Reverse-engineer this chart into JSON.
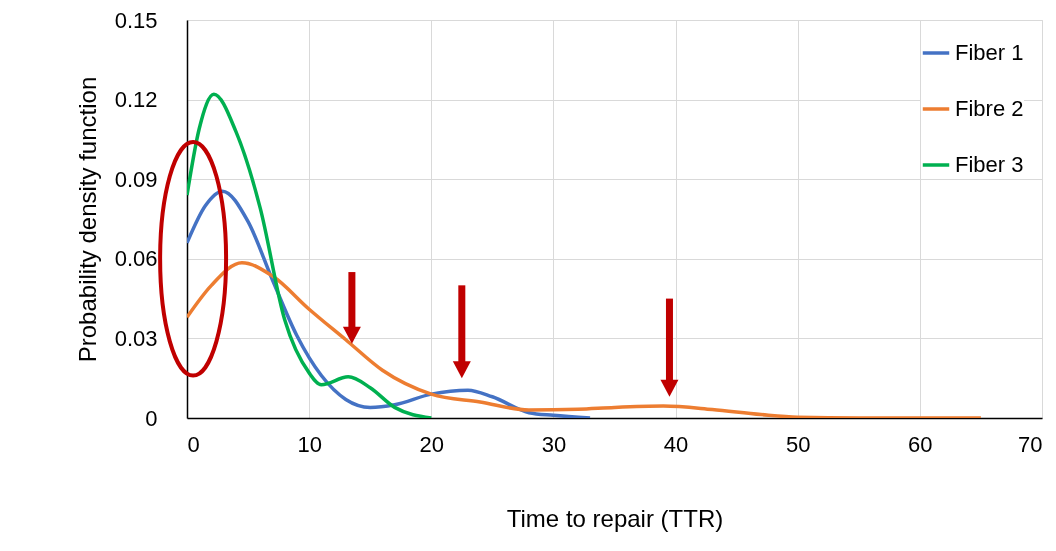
{
  "chart_data": {
    "type": "line",
    "xlabel": "Time to repair (TTR)",
    "ylabel": "Probability density function",
    "xlim": [
      0,
      70
    ],
    "xticks": [
      0,
      10,
      20,
      30,
      40,
      50,
      60,
      70
    ],
    "ylim": [
      0,
      0.15
    ],
    "yticks": [
      0,
      0.03,
      0.06,
      0.09,
      0.12,
      0.15
    ],
    "grid": true,
    "legend": "top right",
    "marker": "none",
    "line_style": "solid",
    "series": [
      {
        "name": "Fiber 1",
        "color": "#4472c4",
        "x": [
          0,
          1.5,
          2.9,
          5,
          7,
          9,
          11,
          13,
          15,
          17,
          20,
          23,
          25,
          28,
          30,
          33
        ],
        "values": [
          0.066,
          0.08,
          0.0855,
          0.074,
          0.052,
          0.031,
          0.016,
          0.007,
          0.004,
          0.005,
          0.009,
          0.0105,
          0.008,
          0.002,
          0.001,
          0
        ]
      },
      {
        "name": "Fibre 2",
        "color": "#ed7d31",
        "x": [
          0,
          2,
          4.5,
          7,
          10,
          13,
          16,
          20,
          24,
          28,
          32,
          35,
          39,
          43,
          47,
          50,
          55,
          65
        ],
        "values": [
          0.038,
          0.05,
          0.0585,
          0.0535,
          0.041,
          0.0295,
          0.018,
          0.009,
          0.006,
          0.003,
          0.0033,
          0.004,
          0.0045,
          0.0032,
          0.0013,
          0.0003,
          0,
          0
        ]
      },
      {
        "name": "Fiber 3",
        "color": "#00b050",
        "x": [
          0,
          1,
          2.2,
          4,
          6,
          8,
          10,
          11,
          13.2,
          15,
          17,
          20
        ],
        "values": [
          0.084,
          0.109,
          0.122,
          0.108,
          0.079,
          0.037,
          0.017,
          0.0125,
          0.0155,
          0.0114,
          0.004,
          0
        ]
      }
    ]
  }
}
